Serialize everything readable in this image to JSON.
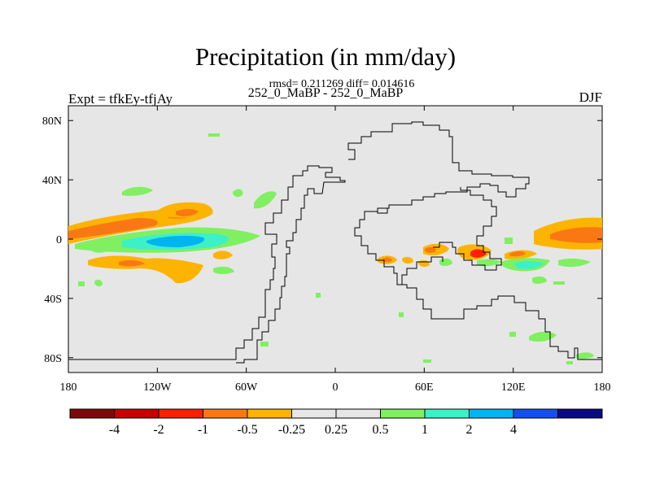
{
  "title": "Precipitation (in mm/day)",
  "stats": "rmsd= 0.211269 diff= 0.014616",
  "subtitle": "252_0_MaBP - 252_0_MaBP",
  "left_label": "Expt = tfkEy-tfjAy",
  "right_label": "DJF",
  "map": {
    "lat_ticks": [
      {
        "label": "80N",
        "lat": 80
      },
      {
        "label": "40N",
        "lat": 40
      },
      {
        "label": "0",
        "lat": 0
      },
      {
        "label": "40S",
        "lat": -40
      },
      {
        "label": "80S",
        "lat": -80
      }
    ],
    "lon_ticks": [
      {
        "label": "180",
        "lon": -180
      },
      {
        "label": "120W",
        "lon": -120
      },
      {
        "label": "60W",
        "lon": -60
      },
      {
        "label": "0",
        "lon": 0
      },
      {
        "label": "60E",
        "lon": 60
      },
      {
        "label": "120E",
        "lon": 120
      },
      {
        "label": "180",
        "lon": 180
      }
    ],
    "background_color": "#e6e6e6"
  },
  "colorbar": {
    "colors": [
      "#7d0a0a",
      "#c80000",
      "#fa2000",
      "#fa7814",
      "#fdb400",
      "#e6e6e6",
      "#e6e6e6",
      "#80f060",
      "#3cf0c8",
      "#00b4f0",
      "#1450f0",
      "#0a0a82"
    ],
    "labels": [
      "-4",
      "-2",
      "-1",
      "-0.5",
      "-0.25",
      "0.25",
      "0.5",
      "1",
      "2",
      "4"
    ]
  }
}
